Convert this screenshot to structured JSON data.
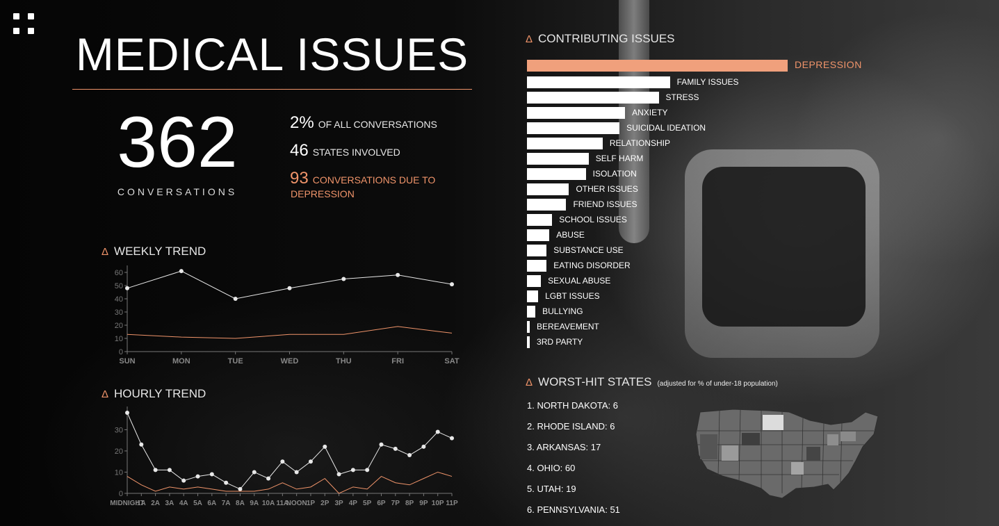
{
  "title": "MEDICAL ISSUES",
  "summary": {
    "total": "362",
    "total_caption": "CONVERSATIONS",
    "stats": [
      {
        "num": "2%",
        "text": "OF ALL CONVERSATIONS"
      },
      {
        "num": "46",
        "text": "STATES INVOLVED"
      },
      {
        "num": "93",
        "text": "CONVERSATIONS DUE TO",
        "text2": "DEPRESSION"
      }
    ]
  },
  "colors": {
    "accent": "#f0946a",
    "bar": "#ffffff",
    "highlight_bar": "#f0a07c"
  },
  "icons": {
    "menu": "grid-menu-icon",
    "section_marker": "triangle-icon"
  },
  "weekly": {
    "heading": "WEEKLY TREND",
    "marker": "Δ"
  },
  "hourly": {
    "heading": "HOURLY TREND",
    "marker": "Δ"
  },
  "contributing": {
    "heading": "CONTRIBUTING ISSUES",
    "marker": "Δ"
  },
  "worst_states": {
    "heading": "WORST-HIT STATES",
    "note": "(adjusted for % of under-18 population)",
    "marker": "Δ",
    "items": [
      "1. NORTH DAKOTA: 6",
      "2. RHODE ISLAND: 6",
      "3. ARKANSAS: 17",
      "4. OHIO: 60",
      "5. UTAH: 19",
      "6. PENNSYLVANIA: 51"
    ]
  },
  "chart_data": [
    {
      "type": "line",
      "title": "WEEKLY TREND",
      "categories": [
        "SUN",
        "MON",
        "TUE",
        "WED",
        "THU",
        "FRI",
        "SAT"
      ],
      "ylim": [
        0,
        60
      ],
      "yticks": [
        0,
        10,
        20,
        30,
        40,
        50,
        60
      ],
      "series": [
        {
          "values": [
            48,
            61,
            40,
            48,
            55,
            58,
            51
          ]
        },
        {
          "values": [
            13,
            11,
            10,
            13,
            13,
            19,
            14
          ]
        }
      ]
    },
    {
      "type": "line",
      "title": "HOURLY TREND",
      "categories": [
        "MIDNIGHT",
        "1A",
        "2A",
        "3A",
        "4A",
        "5A",
        "6A",
        "7A",
        "8A",
        "9A",
        "10A",
        "11A",
        "NOON",
        "1P",
        "2P",
        "3P",
        "4P",
        "5P",
        "6P",
        "7P",
        "8P",
        "9P",
        "10P",
        "11P"
      ],
      "ylim": [
        0,
        38
      ],
      "yticks": [
        0,
        10,
        20,
        30
      ],
      "series": [
        {
          "values": [
            38,
            23,
            11,
            11,
            6,
            8,
            9,
            5,
            2,
            10,
            7,
            15,
            10,
            15,
            22,
            9,
            11,
            11,
            23,
            21,
            18,
            22,
            29,
            26
          ]
        },
        {
          "values": [
            8,
            4,
            1,
            3,
            2,
            3,
            2,
            1,
            1,
            1,
            2,
            5,
            2,
            3,
            7,
            0,
            3,
            2,
            8,
            5,
            4,
            7,
            10,
            8
          ]
        }
      ]
    },
    {
      "type": "bar",
      "title": "CONTRIBUTING ISSUES",
      "categories": [
        "DEPRESSION",
        "FAMILY ISSUES",
        "STRESS",
        "ANXIETY",
        "SUICIDAL IDEATION",
        "RELATIONSHIP",
        "SELF HARM",
        "ISOLATION",
        "OTHER ISSUES",
        "FRIEND ISSUES",
        "SCHOOL ISSUES",
        "ABUSE",
        "SUBSTANCE USE",
        "EATING DISORDER",
        "SEXUAL ABUSE",
        "LGBT ISSUES",
        "BULLYING",
        "BEREAVEMENT",
        "3RD PARTY"
      ],
      "values": [
        93,
        51,
        47,
        35,
        33,
        27,
        22,
        21,
        15,
        14,
        9,
        8,
        7,
        7,
        5,
        4,
        3,
        1,
        1
      ],
      "highlight": "DEPRESSION"
    }
  ]
}
